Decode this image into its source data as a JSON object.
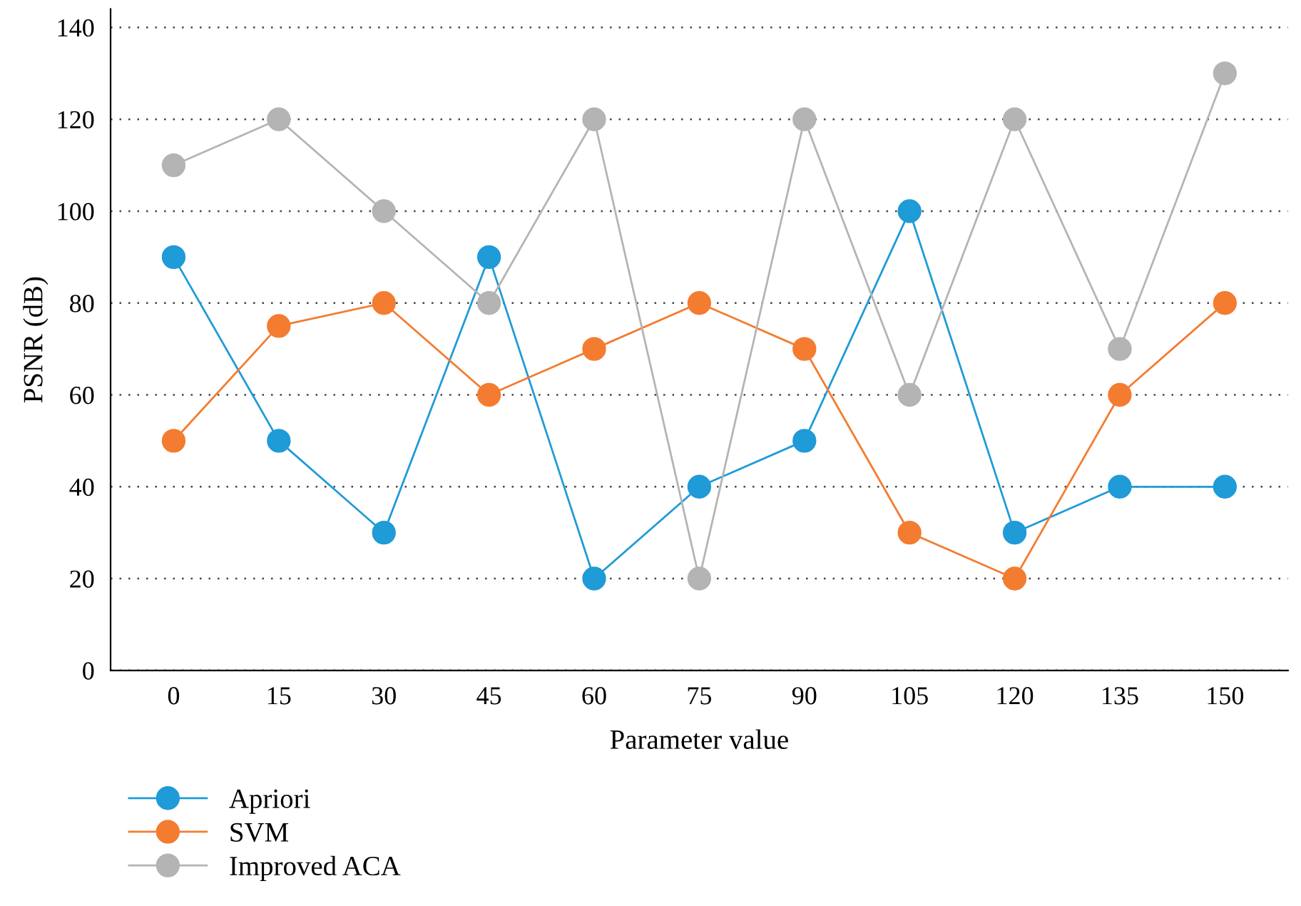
{
  "chart_data": {
    "type": "line",
    "xlabel": "Parameter value",
    "ylabel": "PSNR (dB)",
    "categories": [
      "0",
      "15",
      "30",
      "45",
      "60",
      "75",
      "90",
      "105",
      "120",
      "135",
      "150"
    ],
    "series": [
      {
        "name": "Apriori",
        "color": "#1f9bd7",
        "values": [
          90,
          50,
          30,
          90,
          20,
          40,
          50,
          100,
          30,
          40,
          40
        ]
      },
      {
        "name": "SVM",
        "color": "#f47c30",
        "values": [
          50,
          75,
          80,
          60,
          70,
          80,
          70,
          30,
          20,
          60,
          80
        ]
      },
      {
        "name": "Improved ACA",
        "color": "#b4b4b4",
        "values": [
          110,
          120,
          100,
          80,
          120,
          20,
          120,
          60,
          120,
          70,
          130
        ]
      }
    ],
    "ylim": [
      0,
      144
    ],
    "yticks": [
      0,
      20,
      40,
      60,
      80,
      100,
      120,
      140
    ],
    "grid": "y",
    "legend": "bottom left",
    "marker": "circle",
    "line_style": "solid"
  }
}
